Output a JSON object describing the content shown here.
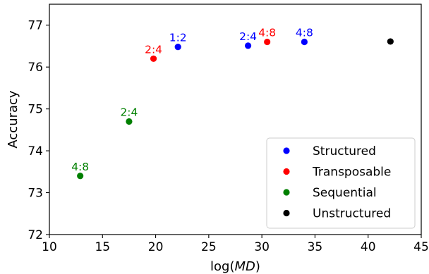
{
  "chart_data": {
    "type": "scatter",
    "title": "",
    "xlabel_prefix": "log(",
    "xlabel_var": "MD",
    "xlabel_suffix": ")",
    "ylabel": "Accuracy",
    "xlim": [
      10,
      45
    ],
    "ylim": [
      72,
      77.5
    ],
    "xticks": [
      "10",
      "15",
      "20",
      "25",
      "30",
      "35",
      "40",
      "45"
    ],
    "yticks": [
      "72",
      "73",
      "74",
      "75",
      "76",
      "77"
    ],
    "grid": false,
    "legend_position": "lower-right",
    "series": [
      {
        "name": "Structured",
        "color": "#0000ff",
        "points": [
          {
            "x": 22.1,
            "y": 76.48,
            "label": "1:2"
          },
          {
            "x": 28.7,
            "y": 76.51,
            "label": "2:4"
          },
          {
            "x": 34.0,
            "y": 76.6,
            "label": "4:8"
          }
        ]
      },
      {
        "name": "Transposable",
        "color": "#ff0000",
        "points": [
          {
            "x": 19.8,
            "y": 76.2,
            "label": "2:4"
          },
          {
            "x": 30.5,
            "y": 76.6,
            "label": "4:8"
          }
        ]
      },
      {
        "name": "Sequential",
        "color": "#008000",
        "points": [
          {
            "x": 17.5,
            "y": 74.7,
            "label": "2:4"
          },
          {
            "x": 12.9,
            "y": 73.4,
            "label": "4:8"
          }
        ]
      },
      {
        "name": "Unstructured",
        "color": "#000000",
        "points": [
          {
            "x": 42.1,
            "y": 76.61,
            "label": ""
          }
        ]
      }
    ]
  }
}
